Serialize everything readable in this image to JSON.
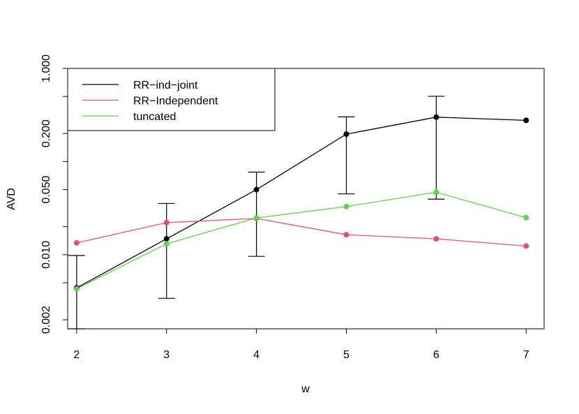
{
  "chart_data": {
    "type": "line",
    "xlabel": "w",
    "ylabel": "AVD",
    "y_scale": "log",
    "x": [
      2,
      3,
      4,
      5,
      6,
      7
    ],
    "xlim": [
      1.9,
      7.2
    ],
    "ylim": [
      0.0016,
      1.0
    ],
    "x_ticks": [
      2,
      3,
      4,
      5,
      6,
      7
    ],
    "y_ticks": [
      0.002,
      0.005,
      0.01,
      0.02,
      0.05,
      0.1,
      0.2,
      0.5,
      1.0
    ],
    "y_tick_labels": [
      "0.002",
      "",
      "0.010",
      "",
      "0.050",
      "",
      "0.200",
      "",
      "1.000"
    ],
    "legend_position": "top-left",
    "series": [
      {
        "name": "RR−ind−joint",
        "color": "#000000",
        "values": [
          0.0044,
          0.0148,
          0.05,
          0.197,
          0.3,
          0.277
        ],
        "error_low": [
          0.0016,
          0.0034,
          0.0096,
          0.045,
          0.0395,
          null
        ],
        "error_high": [
          0.0098,
          0.0355,
          0.0771,
          0.302,
          0.502,
          null
        ]
      },
      {
        "name": "RR−Independent",
        "color": "#DF536B",
        "values": [
          0.0134,
          0.0221,
          0.0245,
          0.0164,
          0.0148,
          0.0124
        ]
      },
      {
        "name": "tuncated",
        "color": "#61D04F",
        "values": [
          0.0043,
          0.0131,
          0.0248,
          0.0329,
          0.0468,
          0.025
        ]
      }
    ]
  }
}
